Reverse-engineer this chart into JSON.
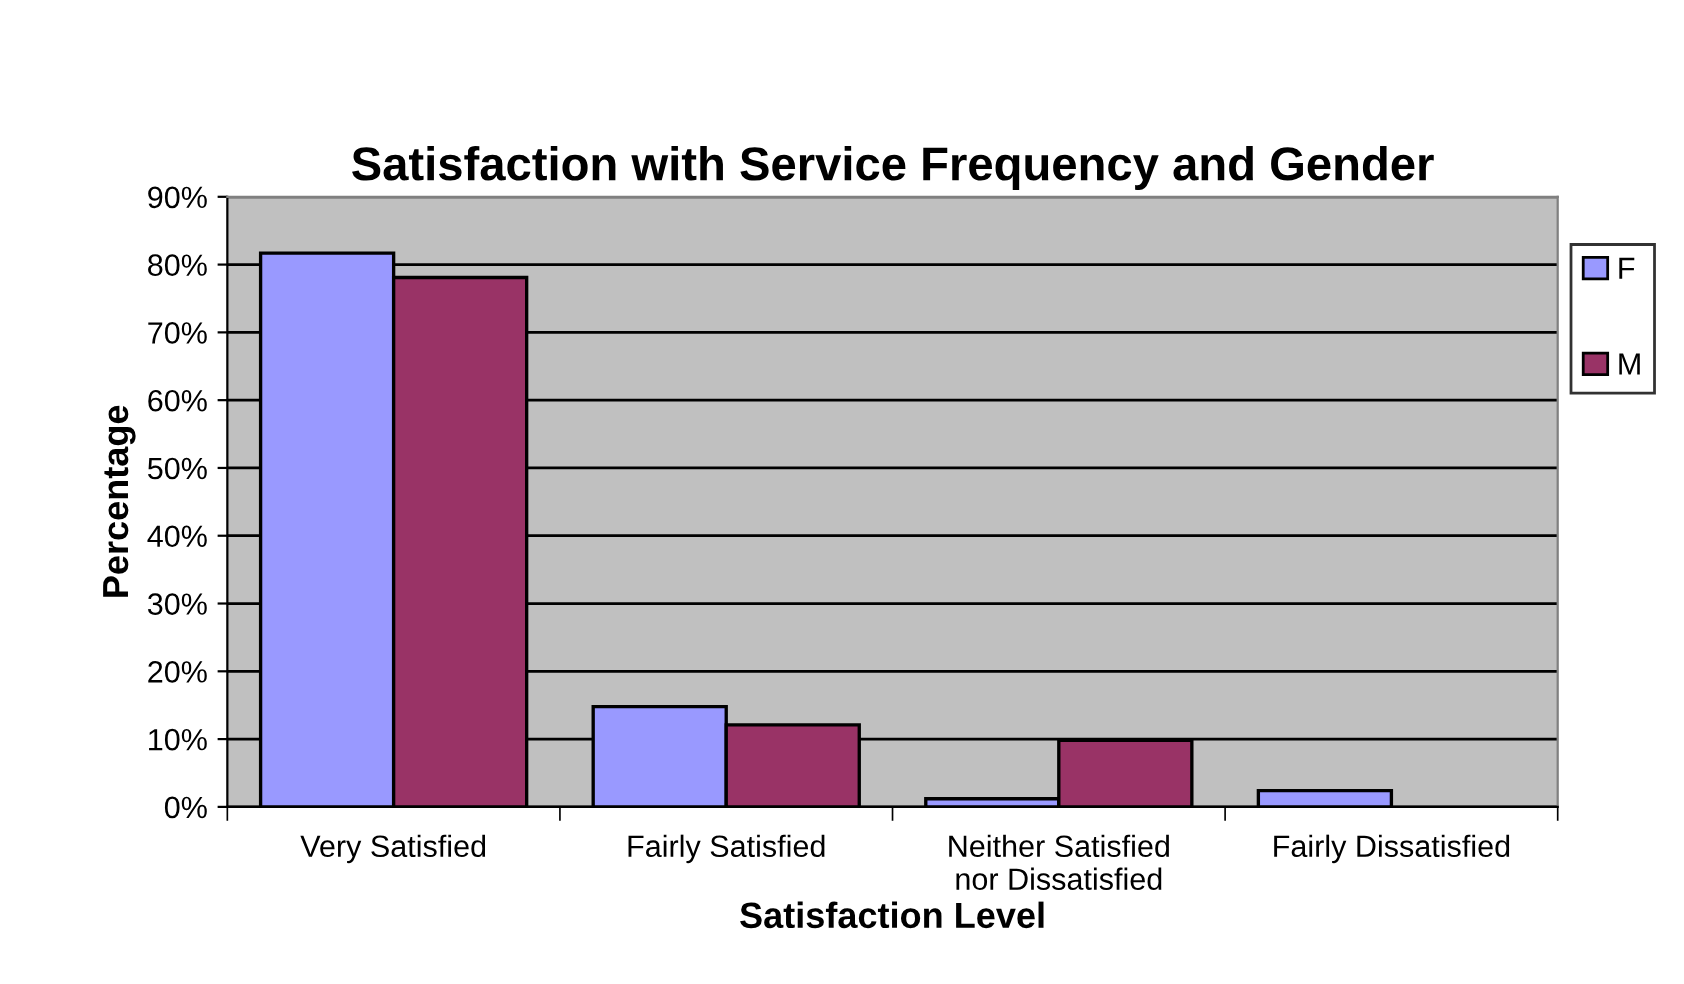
{
  "chart_data": {
    "type": "bar",
    "title": "Satisfaction with Service Frequency and Gender",
    "xlabel": "Satisfaction Level",
    "ylabel": "Percentage",
    "categories": [
      "Very Satisfied",
      "Fairly Satisfied",
      "Neither Satisfied\nnor Dissatisfied",
      "Fairly Dissatisfied"
    ],
    "series": [
      {
        "name": "F",
        "color": "#9999ff",
        "values": [
          81.7,
          14.8,
          1.2,
          2.4
        ]
      },
      {
        "name": "M",
        "color": "#993366",
        "values": [
          78.1,
          12.1,
          9.8,
          null
        ]
      }
    ],
    "ylim": [
      0,
      90
    ],
    "yticks": [
      {
        "value": 0,
        "label": "0%"
      },
      {
        "value": 10,
        "label": "10%"
      },
      {
        "value": 20,
        "label": "20%"
      },
      {
        "value": 30,
        "label": "30%"
      },
      {
        "value": 40,
        "label": "40%"
      },
      {
        "value": 50,
        "label": "50%"
      },
      {
        "value": 60,
        "label": "60%"
      },
      {
        "value": 70,
        "label": "70%"
      },
      {
        "value": 80,
        "label": "80%"
      },
      {
        "value": 90,
        "label": "90%"
      }
    ],
    "grid": "y",
    "legend": "right"
  }
}
